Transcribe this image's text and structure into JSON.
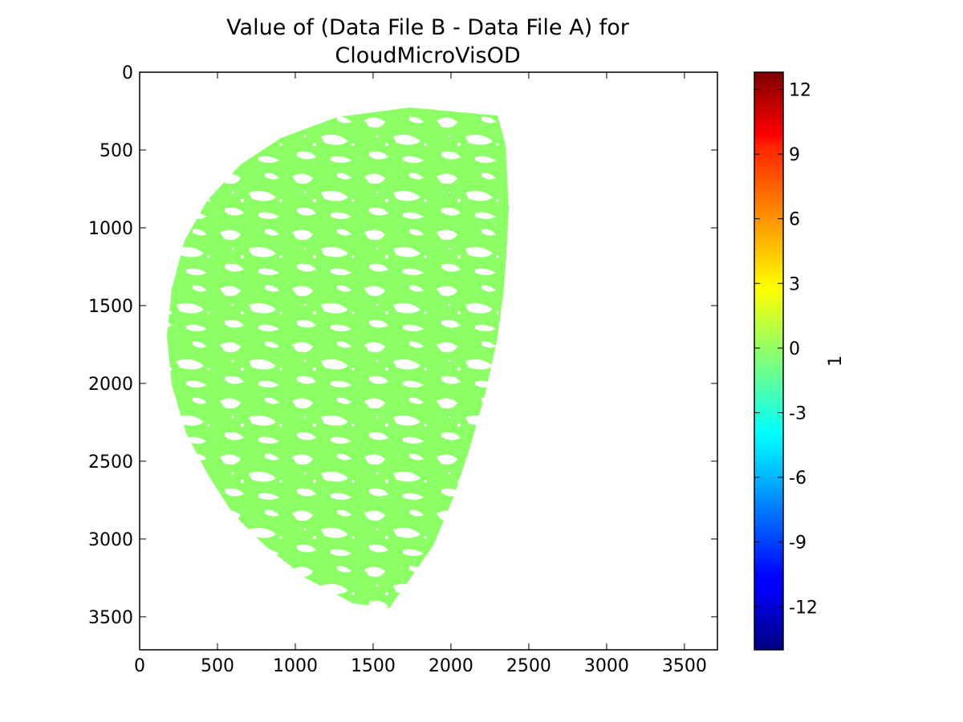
{
  "chart_data": {
    "type": "heatmap",
    "title": [
      "Value of (Data File B - Data File A) for",
      "CloudMicroVisOD"
    ],
    "xlabel": "",
    "ylabel": "",
    "xlim": [
      0,
      3712
    ],
    "ylim": [
      3712,
      0
    ],
    "x_ticks": [
      "0",
      "500",
      "1000",
      "1500",
      "2000",
      "2500",
      "3000",
      "3500"
    ],
    "y_ticks": [
      "0",
      "500",
      "1000",
      "1500",
      "2000",
      "2500",
      "3000",
      "3500"
    ],
    "x_tick_values": [
      0,
      500,
      1000,
      1500,
      2000,
      2500,
      3000,
      3500
    ],
    "y_tick_values": [
      0,
      500,
      1000,
      1500,
      2000,
      2500,
      3000,
      3500
    ],
    "colorbar": {
      "label": "1",
      "colormap": "jet",
      "range": [
        -14,
        12.8
      ],
      "tick_values": [
        12,
        9,
        6,
        3,
        0,
        -3,
        -6,
        -9,
        -12
      ],
      "tick_labels": [
        "12",
        "9",
        "6",
        "3",
        "0",
        "-3",
        "-6",
        "-9",
        "-12"
      ]
    },
    "data_summary": {
      "value": 0,
      "color": "#8cff66",
      "description_shown": "uniform difference of 0 across valid pixels; white = no data"
    },
    "grid": false
  }
}
